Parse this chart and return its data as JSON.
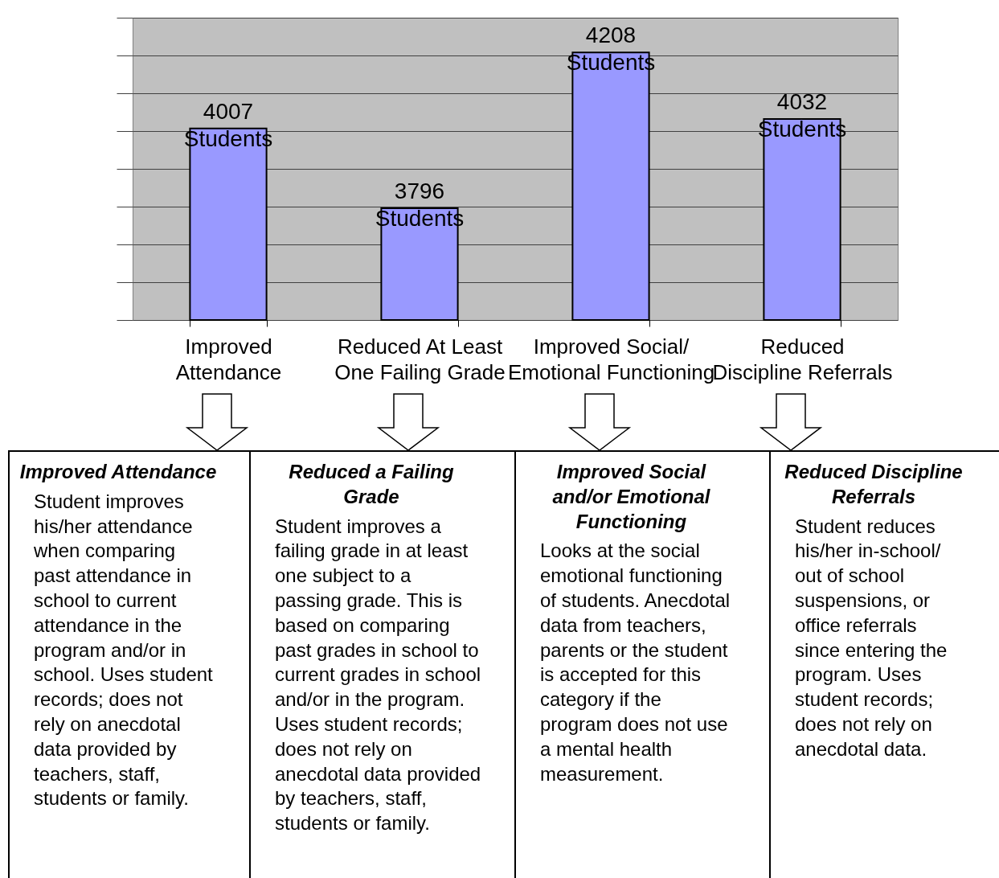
{
  "chart_data": {
    "type": "bar",
    "categories": [
      "Improved\nAttendance",
      "Reduced At Least\nOne Failing Grade",
      "Improved Social/\nEmotional Functioning",
      "Reduced\nDiscipline Referrals"
    ],
    "values": [
      4007,
      3796,
      4208,
      4032
    ],
    "color": "#9999ff",
    "value_labels": [
      "4007 Students",
      "3796 Students",
      "4208 Students",
      "4032 Students"
    ],
    "ylim": [
      3500,
      4300
    ],
    "yticks": [
      {
        "value": 3500,
        "label": null
      },
      {
        "value": 3600,
        "label": null
      },
      {
        "value": 3700,
        "label": null
      },
      {
        "value": 3800,
        "label": null
      },
      {
        "value": 3900,
        "label": null
      },
      {
        "value": 4000,
        "label": null
      },
      {
        "value": 4100,
        "label": null
      },
      {
        "value": 4200,
        "label": null
      },
      {
        "value": 4300,
        "label": null
      }
    ],
    "grid": "y",
    "tick_labels": "x",
    "annotations": [
      "Improved Attendance",
      "Student improves his/her attendance when comparing past attendance in school to current attendance in the program and/or in school.  Uses student records; does not rely on anecdotal data provided by teachers, staff, students or family.",
      "Reduced a Failing Grade",
      "Student improves a failing grade in at least one subject to a passing grade.  This is based on comparing past grades in school to current grades in school and/or in the program.  Uses student records; does not rely on anecdotal data provided by teachers, staff, students or family.",
      "Improved Social and/or Emotional Functioning",
      "Looks at the social emotional functioning of students.  Anecdotal data from teachers, parents or the student is accepted for this category if the program does not use a mental health measurement.",
      "Reduced Discipline Referrals",
      "Student reduces his/her in-school/ out of school suspensions, or office referrals since entering the program.  Uses student records; does not rely on anecdotal data."
    ]
  }
}
